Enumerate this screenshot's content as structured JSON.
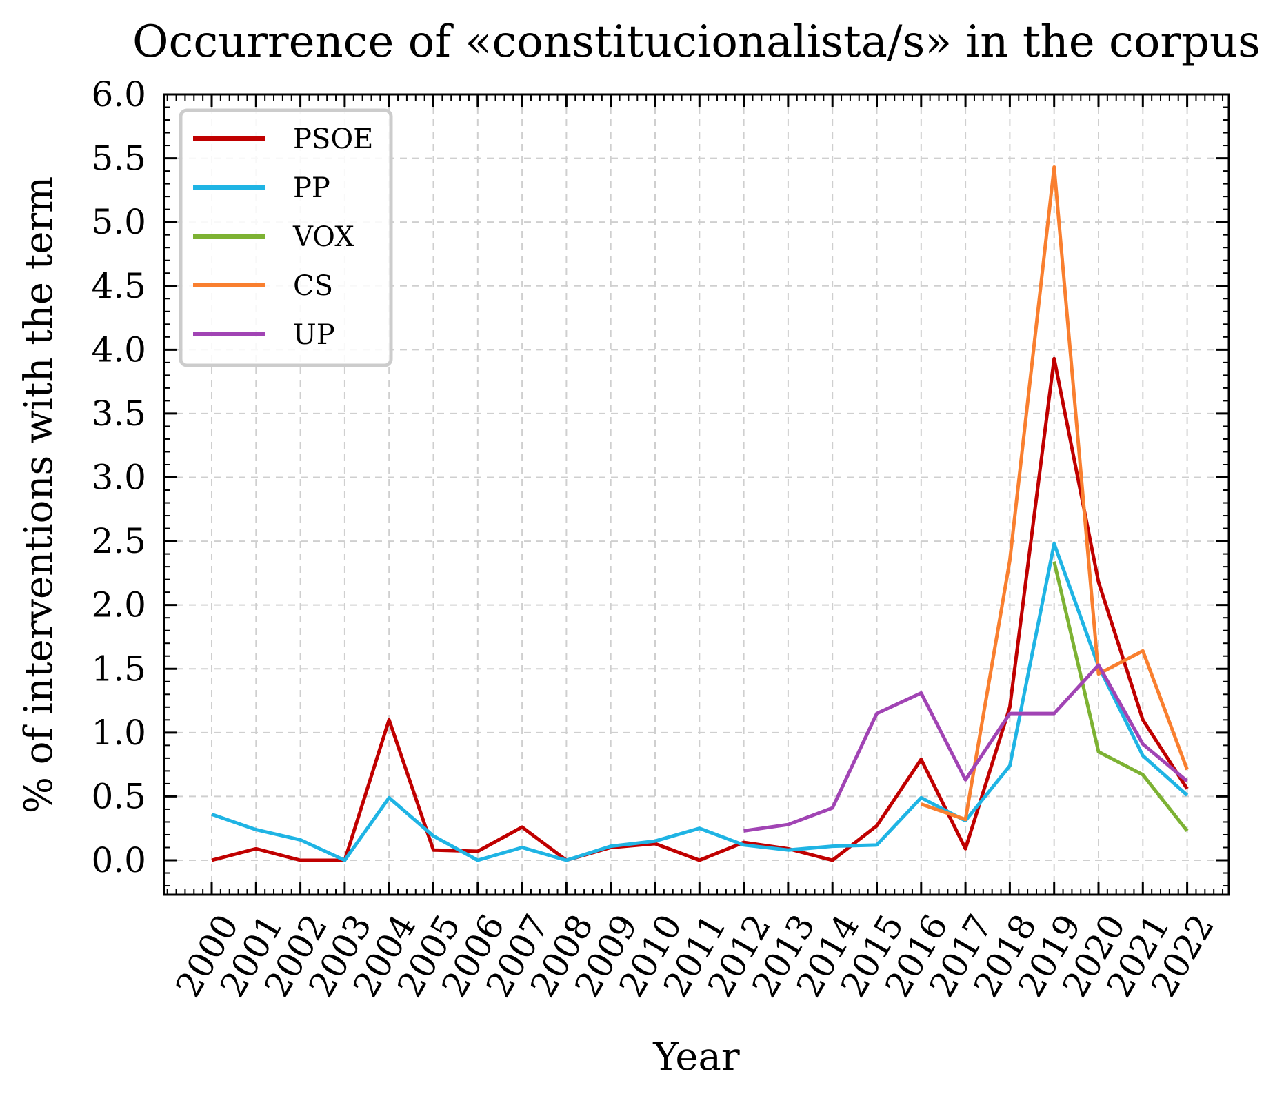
{
  "chart_data": {
    "type": "line",
    "title": "Occurrence of «constitucionalista/s» in the corpus",
    "xlabel": "Year",
    "ylabel": "% of interventions with the term",
    "x": [
      "2000",
      "2001",
      "2002",
      "2003",
      "2004",
      "2005",
      "2006",
      "2007",
      "2008",
      "2009",
      "2010",
      "2011",
      "2012",
      "2013",
      "2014",
      "2015",
      "2016",
      "2017",
      "2018",
      "2019",
      "2020",
      "2021",
      "2022"
    ],
    "ylim": [
      -0.27,
      6.0
    ],
    "yticks": [
      "0.0",
      "0.5",
      "1.0",
      "1.5",
      "2.0",
      "2.5",
      "3.0",
      "3.5",
      "4.0",
      "4.5",
      "5.0",
      "5.5",
      "6.0"
    ],
    "grid": true,
    "legend_position": "top-left",
    "series": [
      {
        "name": "PSOE",
        "color": "#c00000",
        "values": [
          0.0,
          0.09,
          0.0,
          0.0,
          1.1,
          0.08,
          0.07,
          0.26,
          0.0,
          0.1,
          0.13,
          0.0,
          0.14,
          0.09,
          0.0,
          0.27,
          0.79,
          0.09,
          1.2,
          3.93,
          2.18,
          1.1,
          0.56
        ]
      },
      {
        "name": "PP",
        "color": "#1fb4e4",
        "values": [
          0.36,
          0.24,
          0.16,
          0.0,
          0.49,
          0.19,
          0.0,
          0.1,
          0.0,
          0.11,
          0.15,
          0.25,
          0.12,
          0.08,
          0.11,
          0.12,
          0.49,
          0.31,
          0.74,
          2.48,
          1.52,
          0.82,
          0.51
        ]
      },
      {
        "name": "VOX",
        "color": "#7db233",
        "values": [
          null,
          null,
          null,
          null,
          null,
          null,
          null,
          null,
          null,
          null,
          null,
          null,
          null,
          null,
          null,
          null,
          null,
          null,
          null,
          2.34,
          0.85,
          0.67,
          0.23
        ]
      },
      {
        "name": "CS",
        "color": "#f97f2f",
        "values": [
          null,
          null,
          null,
          null,
          null,
          null,
          null,
          null,
          null,
          null,
          null,
          null,
          null,
          null,
          null,
          null,
          0.44,
          0.32,
          2.35,
          5.43,
          1.46,
          1.64,
          0.71
        ]
      },
      {
        "name": "UP",
        "color": "#a144b4",
        "values": [
          null,
          null,
          null,
          null,
          null,
          null,
          null,
          null,
          null,
          null,
          null,
          null,
          0.23,
          0.28,
          0.41,
          1.15,
          1.31,
          0.63,
          1.15,
          1.15,
          1.53,
          0.91,
          0.62
        ]
      }
    ]
  }
}
